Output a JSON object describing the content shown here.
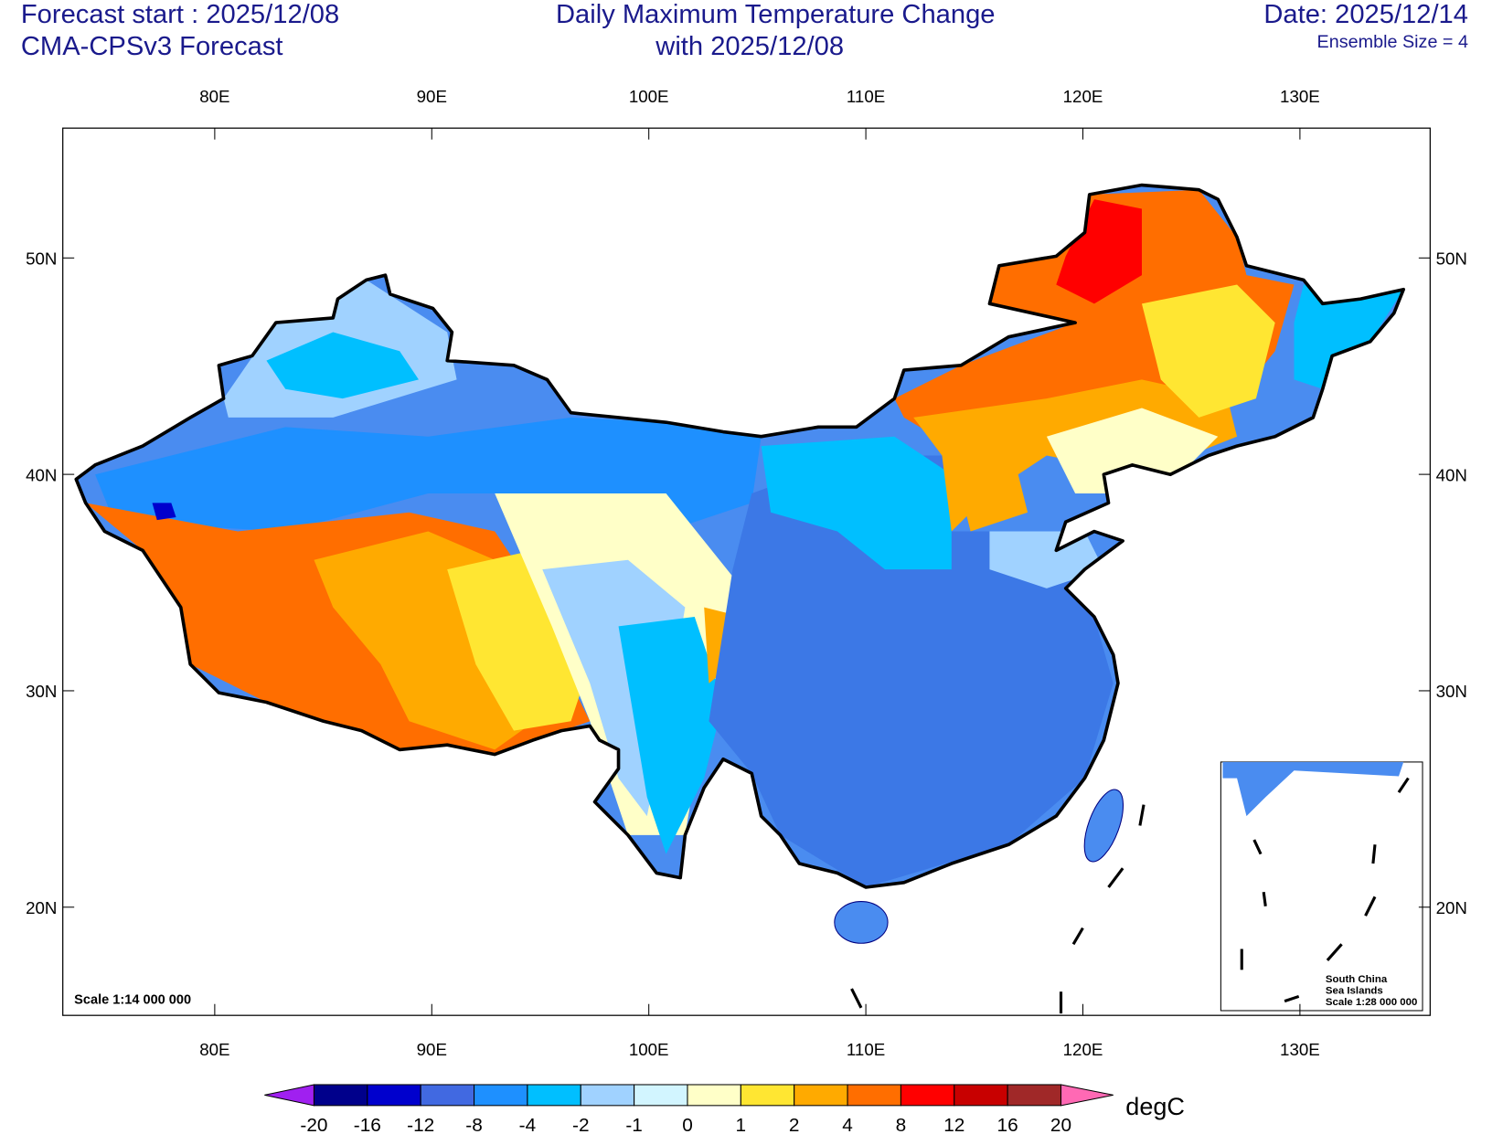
{
  "header": {
    "left_line1": "Forecast start : 2025/12/08",
    "left_line2": "CMA-CPSv3 Forecast",
    "title_line1": "Daily Maximum Temperature Change",
    "title_line2": "with 2025/12/08",
    "right_line1": "Date: 2025/12/14",
    "right_line2": "Ensemble Size = 4"
  },
  "axes": {
    "xlim": [
      73,
      136
    ],
    "ylim": [
      15,
      56
    ],
    "xticks": [
      {
        "value": 80,
        "label": "80E"
      },
      {
        "value": 90,
        "label": "90E"
      },
      {
        "value": 100,
        "label": "100E"
      },
      {
        "value": 110,
        "label": "110E"
      },
      {
        "value": 120,
        "label": "120E"
      },
      {
        "value": 130,
        "label": "130E"
      }
    ],
    "yticks": [
      {
        "value": 20,
        "label": "20N"
      },
      {
        "value": 30,
        "label": "30N"
      },
      {
        "value": 40,
        "label": "40N"
      },
      {
        "value": 50,
        "label": "50N"
      }
    ]
  },
  "map": {
    "scale": "Scale 1:14 000 000",
    "inset_line1": "South China",
    "inset_line2": "Sea Islands",
    "inset_scale": "Scale 1:28 000 000"
  },
  "colorbar": {
    "levels": [
      -20,
      -16,
      -12,
      -8,
      -4,
      -2,
      -1,
      0,
      1,
      2,
      4,
      8,
      12,
      16,
      20
    ],
    "colors": [
      "#a020f0",
      "#00008b",
      "#0000cd",
      "#4169e1",
      "#1e90ff",
      "#00bfff",
      "#a0d2ff",
      "#d2f5ff",
      "#ffffc8",
      "#ffe632",
      "#ffaa00",
      "#ff6e00",
      "#ff0000",
      "#c80000",
      "#a02828",
      "#ff69b4"
    ],
    "units": "degC"
  }
}
